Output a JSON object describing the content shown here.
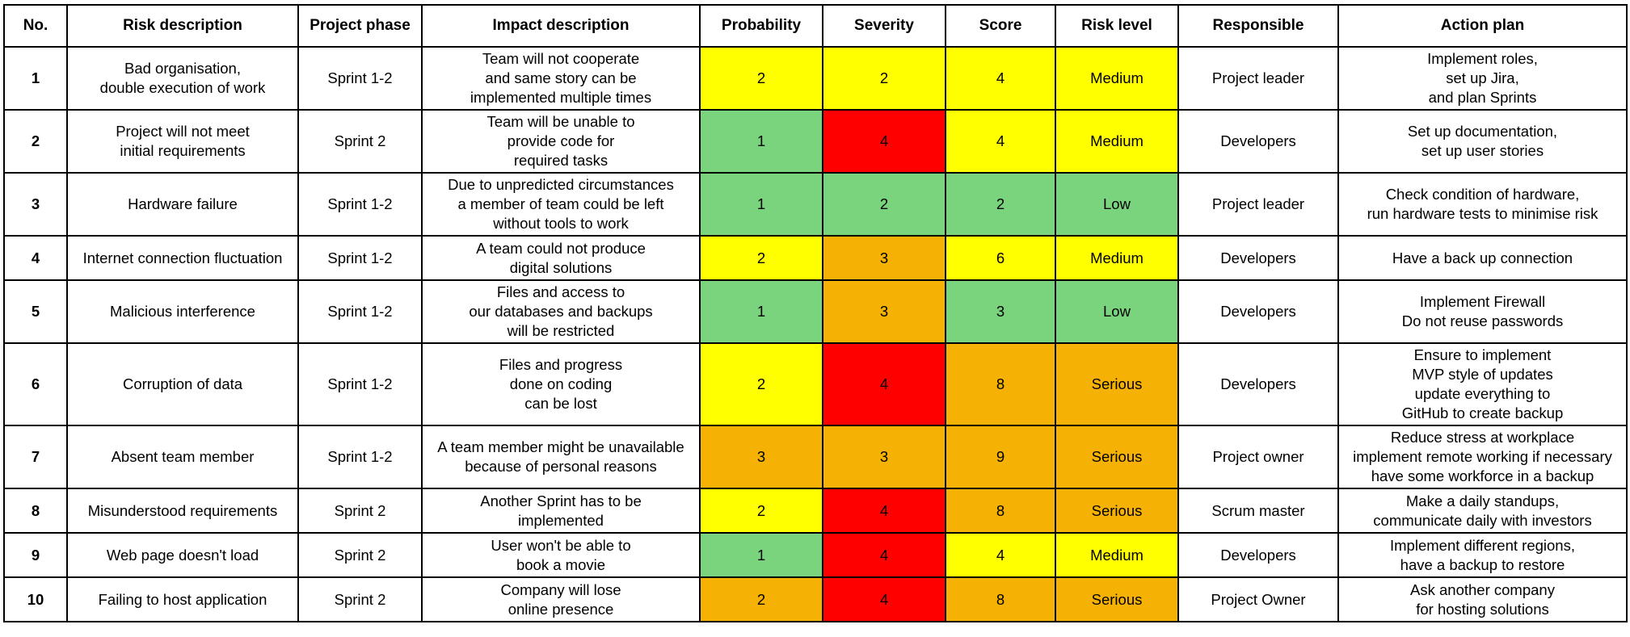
{
  "colors": {
    "low": "#7ad47d",
    "medium": "#ffff00",
    "serious": "#f5b104",
    "high": "#ff0000"
  },
  "headers": {
    "no": "No.",
    "risk": "Risk description",
    "phase": "Project phase",
    "impact": "Impact description",
    "probability": "Probability",
    "severity": "Severity",
    "score": "Score",
    "level": "Risk level",
    "responsible": "Responsible",
    "action": "Action plan"
  },
  "rows": [
    {
      "no": "1",
      "risk": "Bad organisation,\ndouble execution of work",
      "phase": "Sprint 1-2",
      "impact": "Team will not cooperate\nand same story can be\nimplemented multiple times",
      "probability": "2",
      "severity": "2",
      "score": "4",
      "level": "Medium",
      "responsible": "Project leader",
      "action": "Implement roles,\nset up Jira,\nand plan Sprints",
      "probability_color": "medium",
      "severity_color": "medium",
      "score_color": "medium",
      "level_color": "medium"
    },
    {
      "no": "2",
      "risk": "Project will not meet\ninitial requirements",
      "phase": "Sprint 2",
      "impact": "Team will be unable to\nprovide code for\nrequired tasks",
      "probability": "1",
      "severity": "4",
      "score": "4",
      "level": "Medium",
      "responsible": "Developers",
      "action": "Set up documentation,\nset up user stories",
      "probability_color": "low",
      "severity_color": "high",
      "score_color": "medium",
      "level_color": "medium"
    },
    {
      "no": "3",
      "risk": "Hardware failure",
      "phase": "Sprint 1-2",
      "impact": "Due to unpredicted circumstances\na member of team could be left\nwithout tools to work",
      "probability": "1",
      "severity": "2",
      "score": "2",
      "level": "Low",
      "responsible": "Project leader",
      "action": "Check condition of hardware,\nrun hardware tests to minimise risk",
      "probability_color": "low",
      "severity_color": "low",
      "score_color": "low",
      "level_color": "low"
    },
    {
      "no": "4",
      "risk": "Internet connection fluctuation",
      "phase": "Sprint 1-2",
      "impact": "A team could not produce\ndigital solutions",
      "probability": "2",
      "severity": "3",
      "score": "6",
      "level": "Medium",
      "responsible": "Developers",
      "action": "Have a back up connection",
      "probability_color": "medium",
      "severity_color": "serious",
      "score_color": "medium",
      "level_color": "medium"
    },
    {
      "no": "5",
      "risk": "Malicious interference",
      "phase": "Sprint 1-2",
      "impact": "Files and access to\nour databases and backups\nwill be restricted",
      "probability": "1",
      "severity": "3",
      "score": "3",
      "level": "Low",
      "responsible": "Developers",
      "action": "Implement Firewall\nDo not reuse passwords",
      "probability_color": "low",
      "severity_color": "serious",
      "score_color": "low",
      "level_color": "low"
    },
    {
      "no": "6",
      "risk": "Corruption of data",
      "phase": "Sprint 1-2",
      "impact": "Files and progress\ndone on coding\ncan be lost",
      "probability": "2",
      "severity": "4",
      "score": "8",
      "level": "Serious",
      "responsible": "Developers",
      "action": "Ensure to implement\nMVP style of updates\nupdate everything to\nGitHub to create backup",
      "probability_color": "medium",
      "severity_color": "high",
      "score_color": "serious",
      "level_color": "serious"
    },
    {
      "no": "7",
      "risk": "Absent team member",
      "phase": "Sprint 1-2",
      "impact": "A team member might be unavailable\nbecause of personal reasons",
      "probability": "3",
      "severity": "3",
      "score": "9",
      "level": "Serious",
      "responsible": "Project owner",
      "action": "Reduce stress at workplace\nimplement remote working if necessary\nhave some workforce in a backup",
      "probability_color": "serious",
      "severity_color": "serious",
      "score_color": "serious",
      "level_color": "serious"
    },
    {
      "no": "8",
      "risk": "Misunderstood requirements",
      "phase": "Sprint 2",
      "impact": "Another Sprint has to be\nimplemented",
      "probability": "2",
      "severity": "4",
      "score": "8",
      "level": "Serious",
      "responsible": "Scrum master",
      "action": "Make a daily standups,\ncommunicate daily with investors",
      "probability_color": "medium",
      "severity_color": "high",
      "score_color": "serious",
      "level_color": "serious"
    },
    {
      "no": "9",
      "risk": "Web page doesn't load",
      "phase": "Sprint 2",
      "impact": "User won't be able to\nbook a movie",
      "probability": "1",
      "severity": "4",
      "score": "4",
      "level": "Medium",
      "responsible": "Developers",
      "action": "Implement different regions,\nhave a backup to restore",
      "probability_color": "low",
      "severity_color": "high",
      "score_color": "medium",
      "level_color": "medium"
    },
    {
      "no": "10",
      "risk": "Failing to host application",
      "phase": "Sprint 2",
      "impact": "Company will lose\nonline presence",
      "probability": "2",
      "severity": "4",
      "score": "8",
      "level": "Serious",
      "responsible": "Project Owner",
      "action": "Ask another company\nfor hosting solutions",
      "probability_color": "serious",
      "severity_color": "high",
      "score_color": "serious",
      "level_color": "serious"
    }
  ]
}
